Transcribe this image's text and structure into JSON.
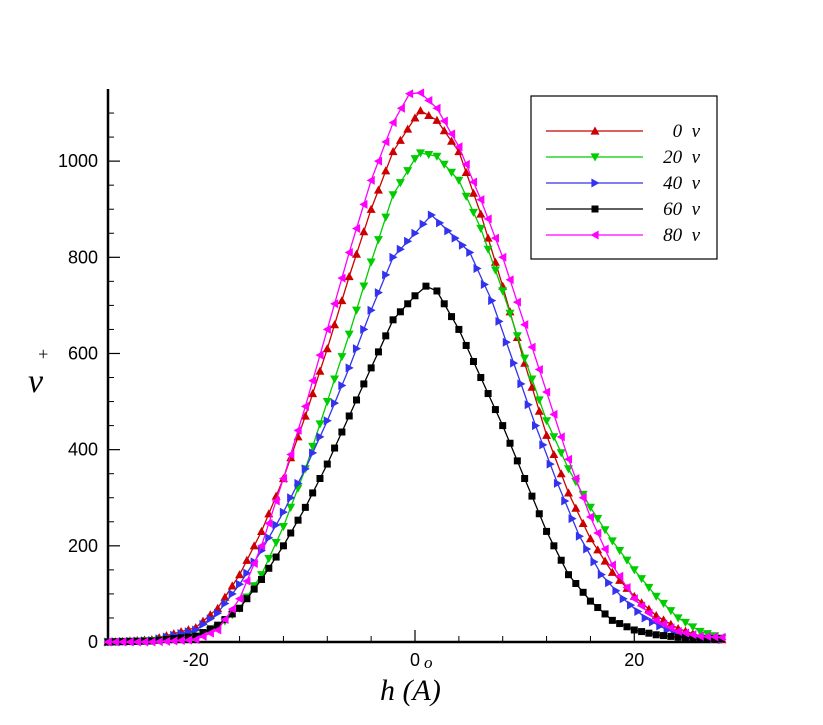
{
  "chart_data": {
    "type": "line",
    "title": "",
    "xlabel": "h (A)",
    "xlabel_sub": "o",
    "ylabel": "v",
    "ylabel_sup": "+",
    "xlim": [
      -28,
      28
    ],
    "ylim": [
      0,
      1150
    ],
    "x_ticks": [
      -20,
      0,
      20
    ],
    "x_tick_labels": [
      "-20",
      "0",
      "20"
    ],
    "y_ticks": [
      0,
      200,
      400,
      600,
      800,
      1000
    ],
    "y_tick_labels": [
      "0",
      "200",
      "400",
      "600",
      "800",
      "1000"
    ],
    "grid": false,
    "legend_position": "top-right",
    "series": [
      {
        "name": "0  v",
        "color": "#cc0000",
        "marker": "triangle-up",
        "points": [
          [
            -28,
            0
          ],
          [
            -24,
            5
          ],
          [
            -20,
            30
          ],
          [
            -18,
            70
          ],
          [
            -16,
            140
          ],
          [
            -14,
            230
          ],
          [
            -12,
            340
          ],
          [
            -10,
            470
          ],
          [
            -8,
            610
          ],
          [
            -6,
            760
          ],
          [
            -4,
            900
          ],
          [
            -2,
            1020
          ],
          [
            0,
            1090
          ],
          [
            0.5,
            1105
          ],
          [
            2,
            1085
          ],
          [
            4,
            1020
          ],
          [
            6,
            890
          ],
          [
            8,
            740
          ],
          [
            10,
            580
          ],
          [
            12,
            430
          ],
          [
            14,
            310
          ],
          [
            16,
            215
          ],
          [
            18,
            145
          ],
          [
            20,
            95
          ],
          [
            22,
            55
          ],
          [
            24,
            28
          ],
          [
            26,
            12
          ],
          [
            28,
            5
          ]
        ]
      },
      {
        "name": "20  v",
        "color": "#00cc00",
        "marker": "triangle-down",
        "points": [
          [
            -28,
            0
          ],
          [
            -24,
            3
          ],
          [
            -20,
            12
          ],
          [
            -18,
            30
          ],
          [
            -16,
            70
          ],
          [
            -14,
            140
          ],
          [
            -12,
            240
          ],
          [
            -10,
            360
          ],
          [
            -8,
            500
          ],
          [
            -6,
            640
          ],
          [
            -4,
            790
          ],
          [
            -2,
            930
          ],
          [
            0,
            1005
          ],
          [
            0.5,
            1017
          ],
          [
            2,
            1010
          ],
          [
            4,
            960
          ],
          [
            6,
            860
          ],
          [
            8,
            730
          ],
          [
            10,
            590
          ],
          [
            12,
            460
          ],
          [
            14,
            360
          ],
          [
            16,
            280
          ],
          [
            18,
            210
          ],
          [
            20,
            150
          ],
          [
            22,
            95
          ],
          [
            24,
            50
          ],
          [
            26,
            22
          ],
          [
            28,
            8
          ]
        ]
      },
      {
        "name": "40  v",
        "color": "#3333ee",
        "marker": "triangle-right",
        "points": [
          [
            -28,
            0
          ],
          [
            -24,
            3
          ],
          [
            -20,
            25
          ],
          [
            -18,
            60
          ],
          [
            -16,
            120
          ],
          [
            -14,
            190
          ],
          [
            -12,
            270
          ],
          [
            -10,
            360
          ],
          [
            -8,
            460
          ],
          [
            -6,
            570
          ],
          [
            -4,
            690
          ],
          [
            -2,
            800
          ],
          [
            0,
            850
          ],
          [
            1.5,
            888
          ],
          [
            3,
            855
          ],
          [
            5,
            810
          ],
          [
            7,
            710
          ],
          [
            9,
            580
          ],
          [
            11,
            450
          ],
          [
            13,
            330
          ],
          [
            15,
            220
          ],
          [
            17,
            140
          ],
          [
            19,
            90
          ],
          [
            21,
            50
          ],
          [
            23,
            25
          ],
          [
            25,
            12
          ],
          [
            28,
            5
          ]
        ]
      },
      {
        "name": "60  v",
        "color": "#000000",
        "marker": "square",
        "points": [
          [
            -28,
            0
          ],
          [
            -24,
            2
          ],
          [
            -20,
            12
          ],
          [
            -18,
            35
          ],
          [
            -16,
            70
          ],
          [
            -14,
            130
          ],
          [
            -12,
            200
          ],
          [
            -10,
            280
          ],
          [
            -8,
            370
          ],
          [
            -6,
            470
          ],
          [
            -4,
            570
          ],
          [
            -2,
            670
          ],
          [
            0,
            720
          ],
          [
            1,
            740
          ],
          [
            2,
            730
          ],
          [
            4,
            650
          ],
          [
            6,
            550
          ],
          [
            8,
            450
          ],
          [
            10,
            340
          ],
          [
            12,
            230
          ],
          [
            14,
            140
          ],
          [
            16,
            85
          ],
          [
            18,
            45
          ],
          [
            20,
            25
          ],
          [
            22,
            15
          ],
          [
            24,
            10
          ],
          [
            26,
            8
          ],
          [
            28,
            7
          ]
        ]
      },
      {
        "name": "80  v",
        "color": "#ff00ff",
        "marker": "triangle-left",
        "points": [
          [
            -28,
            0
          ],
          [
            -24,
            0
          ],
          [
            -22,
            2
          ],
          [
            -20,
            5
          ],
          [
            -18,
            25
          ],
          [
            -16,
            90
          ],
          [
            -14,
            200
          ],
          [
            -12,
            340
          ],
          [
            -10,
            490
          ],
          [
            -8,
            650
          ],
          [
            -6,
            810
          ],
          [
            -4,
            960
          ],
          [
            -2,
            1080
          ],
          [
            -0.5,
            1140
          ],
          [
            0.5,
            1142
          ],
          [
            2,
            1110
          ],
          [
            4,
            1030
          ],
          [
            6,
            920
          ],
          [
            8,
            800
          ],
          [
            10,
            660
          ],
          [
            12,
            520
          ],
          [
            14,
            380
          ],
          [
            16,
            260
          ],
          [
            18,
            160
          ],
          [
            20,
            90
          ],
          [
            22,
            45
          ],
          [
            24,
            22
          ],
          [
            26,
            12
          ],
          [
            28,
            10
          ]
        ]
      }
    ]
  }
}
